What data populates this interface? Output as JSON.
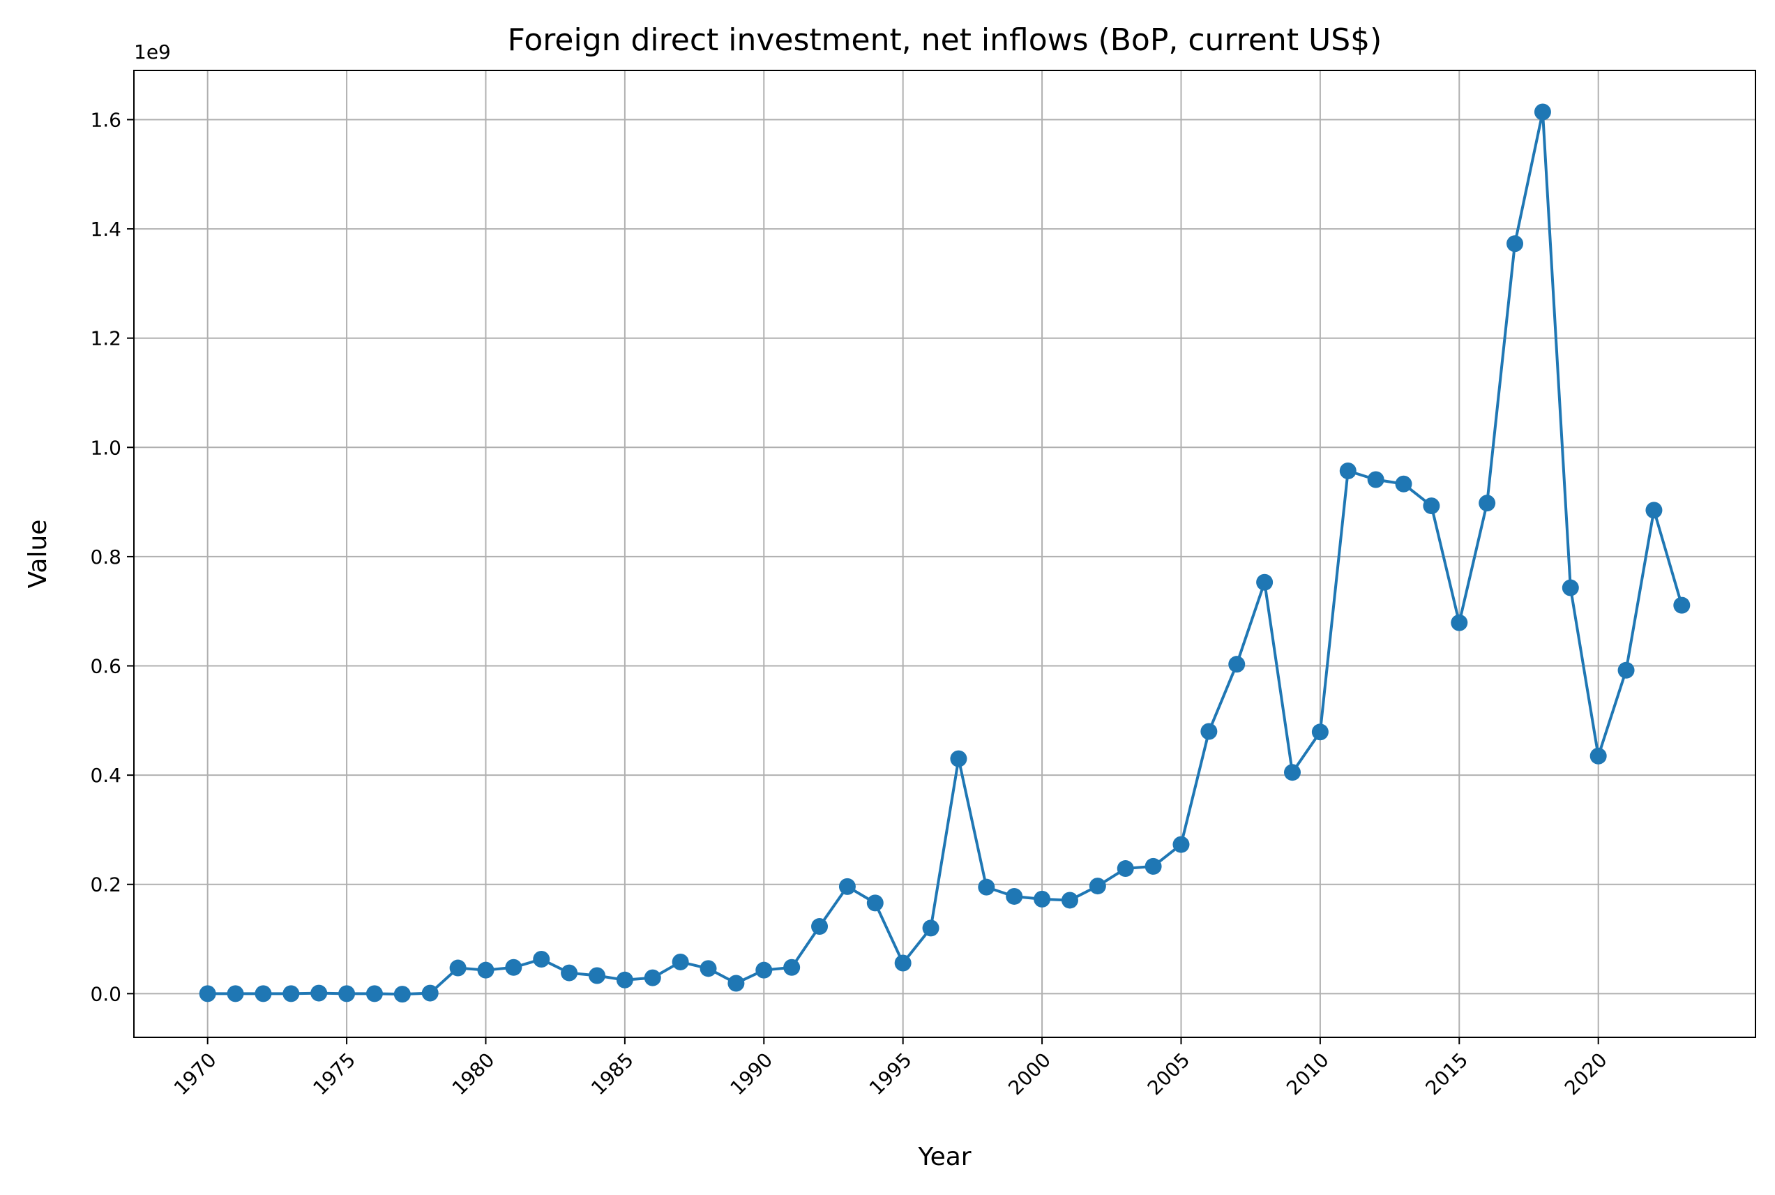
{
  "chart_data": {
    "type": "line",
    "title": "Foreign direct investment, net inflows (BoP, current US$)",
    "xlabel": "Year",
    "ylabel": "Value",
    "y_offset_label": "1e9",
    "xlim": [
      1967.35,
      2025.65
    ],
    "ylim": [
      -80000000,
      1690000000
    ],
    "x_ticks": [
      1970,
      1975,
      1980,
      1985,
      1990,
      1995,
      2000,
      2005,
      2010,
      2015,
      2020
    ],
    "y_ticks": [
      0,
      200000000,
      400000000,
      600000000,
      800000000,
      1000000000,
      1200000000,
      1400000000,
      1600000000
    ],
    "y_tick_labels": [
      "0.0",
      "0.2",
      "0.4",
      "0.6",
      "0.8",
      "1.0",
      "1.2",
      "1.4",
      "1.6"
    ],
    "grid": true,
    "x_tick_rotation": 45,
    "series": [
      {
        "color": "#1f77b4",
        "marker": "circle",
        "x": [
          1970,
          1971,
          1972,
          1973,
          1974,
          1975,
          1976,
          1977,
          1978,
          1979,
          1980,
          1981,
          1982,
          1983,
          1984,
          1985,
          1986,
          1987,
          1988,
          1989,
          1990,
          1991,
          1992,
          1993,
          1994,
          1995,
          1996,
          1997,
          1998,
          1999,
          2000,
          2001,
          2002,
          2003,
          2004,
          2005,
          2006,
          2007,
          2008,
          2009,
          2010,
          2011,
          2012,
          2013,
          2014,
          2015,
          2016,
          2017,
          2018,
          2019,
          2020,
          2021,
          2022,
          2023
        ],
        "y": [
          0,
          0,
          0,
          0,
          1000000,
          0,
          0,
          -1000000,
          1000000,
          47000000,
          43000000,
          48000000,
          63000000,
          38000000,
          33000000,
          25000000,
          29000000,
          58000000,
          46000000,
          19000000,
          43000000,
          48000000,
          123000000,
          196000000,
          166000000,
          56000000,
          120000000,
          430000000,
          195000000,
          178000000,
          173000000,
          171000000,
          197000000,
          229000000,
          233000000,
          273000000,
          480000000,
          603000000,
          753000000,
          405000000,
          479000000,
          957000000,
          941000000,
          933000000,
          893000000,
          679000000,
          898000000,
          1373000000,
          1614000000,
          743000000,
          435000000,
          592000000,
          885000000,
          711000000
        ]
      }
    ]
  }
}
